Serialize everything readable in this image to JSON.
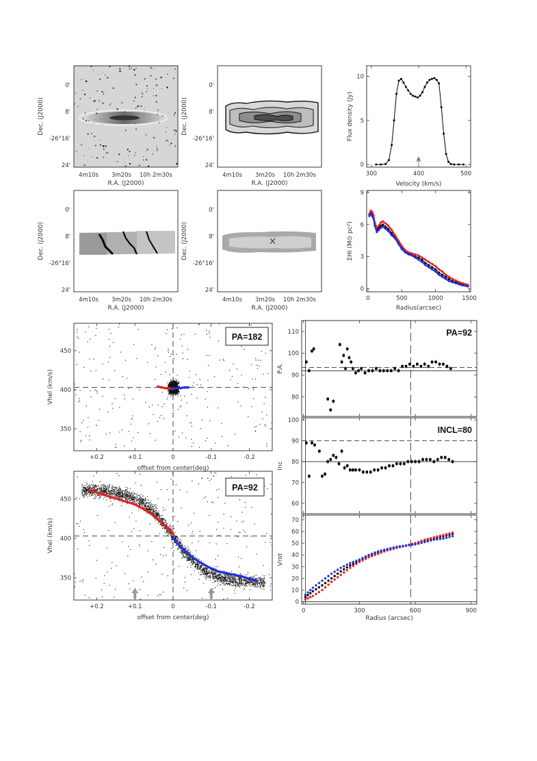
{
  "chart_data": [
    {
      "id": "p_optical",
      "type": "heatmap",
      "xlabel": "R.A. (J2000)",
      "ylabel": "Dec. (J2000)",
      "xticks": [
        "4m10s",
        "3m20s",
        "10h 2m30s"
      ],
      "yticks": [
        "0'",
        "8'",
        "-26°16'",
        "24'"
      ],
      "content": "optical image with outer HI contour"
    },
    {
      "id": "p_mom0",
      "type": "heatmap",
      "xlabel": "R.A. (J2000)",
      "ylabel": "Dec. (J2000)",
      "xticks": [
        "4m10s",
        "3m20s",
        "10h 2m30s"
      ],
      "yticks": [
        "0'",
        "8'",
        "-26°16'",
        "24'"
      ],
      "content": "HI intensity map with contours"
    },
    {
      "id": "p_spec",
      "type": "line",
      "xlabel": "Velocity (km/s)",
      "ylabel": "Flux density (Jy)",
      "xlim": [
        290,
        510
      ],
      "ylim": [
        -0.3,
        11.2
      ],
      "xticks": [
        300,
        400,
        500
      ],
      "yticks": [
        0,
        5,
        10
      ],
      "marker_label": "A",
      "marker_x": 400,
      "x": [
        310,
        320,
        330,
        337,
        343,
        348,
        353,
        358,
        363,
        368,
        373,
        378,
        383,
        388,
        393,
        398,
        403,
        408,
        413,
        418,
        423,
        428,
        433,
        438,
        443,
        448,
        453,
        458,
        463,
        468,
        475,
        485,
        495
      ],
      "y": [
        0,
        0,
        0.05,
        0.5,
        2.2,
        5,
        8,
        9.5,
        9.7,
        9.3,
        8.8,
        8.4,
        8.0,
        7.8,
        7.7,
        7.6,
        7.8,
        8.2,
        8.8,
        9.3,
        9.6,
        9.7,
        9.8,
        9.6,
        9.2,
        6.5,
        3.5,
        1.2,
        0.3,
        0.05,
        0,
        0,
        0
      ]
    },
    {
      "id": "p_mom1",
      "type": "heatmap",
      "xlabel": "R.A. (J2000)",
      "ylabel": "Dec. (J2000)",
      "xticks": [
        "4m10s",
        "3m20s",
        "10h 2m30s"
      ],
      "yticks": [
        "0'",
        "8'",
        "-26°16'",
        "24'"
      ],
      "content": "velocity field"
    },
    {
      "id": "p_mom2",
      "type": "heatmap",
      "xlabel": "R.A. (J2000)",
      "ylabel": "Dec. (J2000)",
      "xticks": [
        "4m10s",
        "3m20s",
        "10h 2m30s"
      ],
      "yticks": [
        "0'",
        "8'",
        "-26°16'",
        "24'"
      ],
      "content": "velocity dispersion map"
    },
    {
      "id": "p_sigma",
      "type": "line",
      "xlabel": "Radius(arcsec)",
      "ylabel": "ΣHI (M⊙ pc²)",
      "xlim": [
        -20,
        1520
      ],
      "ylim": [
        -0.3,
        9.2
      ],
      "xticks": [
        0,
        500,
        1000,
        1500
      ],
      "yticks": [
        0,
        3,
        6,
        9
      ],
      "series": [
        {
          "color": "#000000",
          "x": [
            20,
            40,
            60,
            80,
            100,
            130,
            160,
            190,
            220,
            260,
            300,
            350,
            400,
            450,
            500,
            550,
            600,
            650,
            700,
            750,
            800,
            850,
            900,
            950,
            1000,
            1050,
            1100,
            1150,
            1200,
            1250,
            1300,
            1350,
            1400,
            1450,
            1480
          ],
          "y": [
            6.9,
            7.1,
            7.0,
            6.8,
            6.1,
            5.5,
            5.7,
            5.9,
            6.0,
            5.8,
            5.6,
            5.2,
            4.8,
            4.3,
            3.8,
            3.5,
            3.3,
            3.2,
            3.0,
            2.9,
            2.7,
            2.4,
            2.2,
            2.0,
            1.8,
            1.5,
            1.3,
            1.1,
            0.9,
            0.7,
            0.6,
            0.5,
            0.4,
            0.3,
            0.25
          ]
        },
        {
          "color": "#e02020",
          "x": [
            20,
            40,
            60,
            80,
            100,
            130,
            160,
            190,
            220,
            260,
            300,
            350,
            400,
            450,
            500,
            550,
            600,
            650,
            700,
            750,
            800,
            850,
            900,
            950,
            1000,
            1050,
            1100,
            1150,
            1200,
            1250,
            1300,
            1350,
            1400,
            1450,
            1480
          ],
          "y": [
            7.0,
            7.3,
            7.2,
            6.9,
            6.2,
            5.7,
            5.9,
            6.2,
            6.3,
            6.1,
            5.9,
            5.5,
            5.0,
            4.5,
            4.0,
            3.6,
            3.4,
            3.3,
            3.2,
            3.1,
            2.9,
            2.7,
            2.5,
            2.3,
            2.1,
            1.8,
            1.6,
            1.3,
            1.1,
            0.9,
            0.75,
            0.6,
            0.5,
            0.4,
            0.35
          ]
        },
        {
          "color": "#2030e0",
          "x": [
            20,
            40,
            60,
            80,
            100,
            130,
            160,
            190,
            220,
            260,
            300,
            350,
            400,
            450,
            500,
            550,
            600,
            650,
            700,
            750,
            800,
            850,
            900,
            950,
            1000,
            1050,
            1100,
            1150,
            1200,
            1250,
            1300,
            1350,
            1400,
            1450,
            1480
          ],
          "y": [
            6.8,
            7.0,
            6.8,
            6.6,
            5.9,
            5.3,
            5.5,
            5.7,
            5.8,
            5.6,
            5.4,
            5.0,
            4.7,
            4.2,
            3.7,
            3.4,
            3.2,
            3.1,
            2.9,
            2.7,
            2.5,
            2.2,
            2.0,
            1.8,
            1.6,
            1.3,
            1.1,
            0.9,
            0.7,
            0.6,
            0.5,
            0.4,
            0.3,
            0.25,
            0.2
          ]
        }
      ]
    },
    {
      "id": "p_pv182",
      "type": "scatter",
      "xlabel": "offset from center(deg)",
      "ylabel": "Vhel (km/s)",
      "xlim": [
        0.26,
        -0.26
      ],
      "ylim": [
        322,
        485
      ],
      "xticks": [
        0.2,
        0.1,
        0,
        -0.1,
        -0.2
      ],
      "xtick_labels": [
        "+0.2",
        "+0.1",
        "0",
        "-0.1",
        "-0.2"
      ],
      "yticks": [
        350,
        400,
        450
      ],
      "systemic_velocity": 403,
      "label": "PA=182",
      "series": [
        {
          "color": "#e02020",
          "x": [
            0.04,
            0.03,
            0.02,
            0.01,
            0.0
          ],
          "y": [
            404,
            403,
            402,
            402,
            401
          ]
        },
        {
          "color": "#2030e0",
          "x": [
            0.0,
            -0.01,
            -0.02,
            -0.03,
            -0.04
          ],
          "y": [
            401,
            402,
            402,
            403,
            403
          ]
        }
      ]
    },
    {
      "id": "p_pv92",
      "type": "scatter",
      "xlabel": "offset from center(deg)",
      "ylabel": "Vhel (km/s)",
      "xlim": [
        0.26,
        -0.26
      ],
      "ylim": [
        322,
        485
      ],
      "xticks": [
        0.2,
        0.1,
        0,
        -0.1,
        -0.2
      ],
      "xtick_labels": [
        "+0.2",
        "+0.1",
        "0",
        "-0.1",
        "-0.2"
      ],
      "yticks": [
        350,
        400,
        450
      ],
      "systemic_velocity": 403,
      "label": "PA=92",
      "arrows_x": [
        0.1,
        -0.1
      ],
      "series": [
        {
          "color": "#e02020",
          "x": [
            0.22,
            0.2,
            0.18,
            0.16,
            0.14,
            0.12,
            0.1,
            0.08,
            0.06,
            0.04,
            0.02,
            0.0
          ],
          "y": [
            461,
            458,
            455,
            452,
            449,
            446,
            443,
            438,
            432,
            424,
            415,
            406
          ]
        },
        {
          "color": "#2030e0",
          "x": [
            0.0,
            -0.02,
            -0.04,
            -0.06,
            -0.08,
            -0.1,
            -0.12,
            -0.14,
            -0.16,
            -0.18,
            -0.2,
            -0.22
          ],
          "y": [
            400,
            389,
            380,
            373,
            367,
            362,
            358,
            356,
            354,
            352,
            349,
            346
          ]
        }
      ]
    },
    {
      "id": "p_pa",
      "type": "scatter",
      "ylabel": "P.A.",
      "xlim": [
        -10,
        930
      ],
      "ylim": [
        71,
        115
      ],
      "yticks": [
        80,
        90,
        100,
        110
      ],
      "label": "PA=92",
      "fit_line": 92,
      "dashed_line": 93.5,
      "vline_x": 575,
      "x": [
        15,
        30,
        45,
        55,
        130,
        145,
        160,
        195,
        205,
        215,
        225,
        235,
        245,
        255,
        265,
        280,
        295,
        310,
        330,
        350,
        370,
        390,
        410,
        430,
        450,
        470,
        490,
        510,
        530,
        550,
        570,
        590,
        610,
        630,
        650,
        670,
        690,
        710,
        730,
        750,
        770,
        790
      ],
      "y": [
        96,
        92,
        101,
        102,
        79,
        74,
        78,
        104,
        96,
        99,
        93,
        102,
        98,
        96,
        93,
        91,
        92,
        93,
        91,
        92,
        92,
        93,
        92,
        92,
        92,
        92,
        93,
        92,
        94,
        94,
        95,
        94,
        95,
        94,
        95,
        94,
        96,
        96,
        95,
        95,
        94,
        93
      ]
    },
    {
      "id": "p_inc",
      "type": "scatter",
      "ylabel": "Inc",
      "xlim": [
        -10,
        930
      ],
      "ylim": [
        55,
        101
      ],
      "yticks": [
        60,
        70,
        80,
        90,
        100
      ],
      "label": "INCL=80",
      "fit_line": 80,
      "dashed_line": 90,
      "vline_x": 575,
      "x": [
        15,
        30,
        45,
        60,
        85,
        100,
        115,
        130,
        145,
        160,
        175,
        190,
        205,
        220,
        235,
        250,
        265,
        280,
        300,
        320,
        340,
        360,
        380,
        400,
        420,
        440,
        460,
        480,
        500,
        520,
        540,
        560,
        580,
        600,
        620,
        640,
        660,
        680,
        700,
        720,
        740,
        760,
        780,
        800
      ],
      "y": [
        89,
        73,
        89,
        88,
        85,
        73,
        74,
        80,
        81,
        83,
        82,
        79,
        85,
        77,
        78,
        76,
        76,
        76,
        76,
        75,
        75,
        75,
        76,
        76,
        77,
        77,
        78,
        78,
        79,
        79,
        79,
        80,
        80,
        80,
        80,
        81,
        81,
        81,
        80,
        81,
        82,
        82,
        81,
        80
      ]
    },
    {
      "id": "p_vrot",
      "type": "scatter",
      "xlabel": "Radius (arcsec)",
      "ylabel": "Vrot",
      "xlim": [
        -10,
        930
      ],
      "ylim": [
        -2,
        74
      ],
      "xticks": [
        0,
        300,
        600,
        900
      ],
      "yticks": [
        0,
        10,
        20,
        30,
        40,
        50,
        60,
        70
      ],
      "zero_line": 0,
      "vline_x": 575,
      "series": [
        {
          "color": "#000000",
          "x": [
            10,
            50,
            100,
            150,
            200,
            250,
            300,
            350,
            400,
            450,
            500,
            550,
            600,
            650,
            700,
            750,
            800
          ],
          "y": [
            4,
            9,
            14,
            20,
            26,
            31,
            35,
            39,
            42,
            44,
            46,
            48,
            50,
            52,
            54,
            56,
            58
          ]
        },
        {
          "color": "#e02020",
          "x": [
            10,
            50,
            100,
            150,
            200,
            250,
            300,
            350,
            400,
            450,
            500,
            550,
            600,
            650,
            700,
            750,
            800
          ],
          "y": [
            2,
            5,
            10,
            17,
            23,
            29,
            34,
            38,
            41,
            44,
            46,
            48,
            50,
            53,
            55,
            57,
            59
          ]
        },
        {
          "color": "#2030e0",
          "x": [
            10,
            50,
            100,
            150,
            200,
            250,
            300,
            350,
            400,
            450,
            500,
            550,
            600,
            650,
            700,
            750,
            800
          ],
          "y": [
            6,
            12,
            18,
            24,
            29,
            33,
            36,
            40,
            43,
            45,
            47,
            48,
            49,
            51,
            53,
            54,
            56
          ]
        }
      ]
    }
  ]
}
